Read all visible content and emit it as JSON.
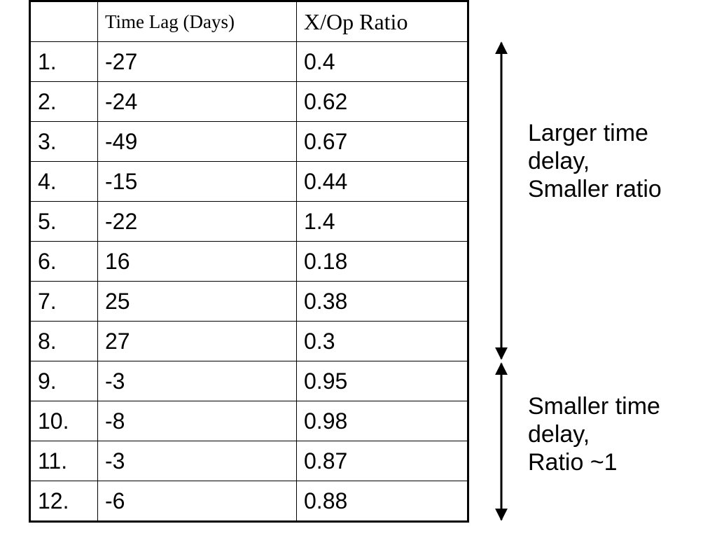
{
  "table": {
    "headers": [
      "",
      "Time Lag (Days)",
      "X/Op Ratio"
    ],
    "rows": [
      {
        "index": "1.",
        "lag": "-27",
        "ratio": "0.4"
      },
      {
        "index": "2.",
        "lag": "-24",
        "ratio": "0.62"
      },
      {
        "index": "3.",
        "lag": "-49",
        "ratio": "0.67"
      },
      {
        "index": "4.",
        "lag": "-15",
        "ratio": "0.44"
      },
      {
        "index": "5.",
        "lag": "-22",
        "ratio": "1.4"
      },
      {
        "index": "6.",
        "lag": "16",
        "ratio": "0.18"
      },
      {
        "index": "7.",
        "lag": "25",
        "ratio": "0.38"
      },
      {
        "index": "8.",
        "lag": "27",
        "ratio": "0.3"
      },
      {
        "index": "9.",
        "lag": "-3",
        "ratio": "0.95"
      },
      {
        "index": "10.",
        "lag": "-8",
        "ratio": "0.98"
      },
      {
        "index": "11.",
        "lag": "-3",
        "ratio": "0.87"
      },
      {
        "index": "12.",
        "lag": "-6",
        "ratio": "0.88"
      }
    ]
  },
  "annotations": {
    "large": {
      "line1": "Larger time",
      "line2": "delay,",
      "line3": "Smaller ratio"
    },
    "small": {
      "line1": "Smaller time",
      "line2": "delay,",
      "line3": "Ratio ~1"
    }
  }
}
